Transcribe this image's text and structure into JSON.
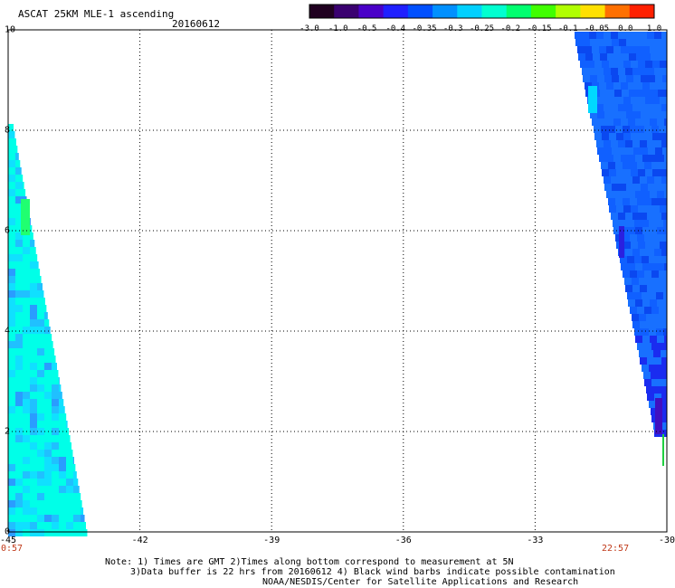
{
  "header": {
    "title": "ASCAT 25KM MLE-1 ascending",
    "date": "20160612"
  },
  "colorbar": {
    "labels": [
      "-3.0",
      "-1.0",
      "-0.5",
      "-0.4",
      "-0.35",
      "-0.3",
      "-0.25",
      "-0.2",
      "-0.15",
      "-0.1",
      "-0.05",
      "0.0",
      "1.0"
    ],
    "colors": [
      "#200020",
      "#3a0070",
      "#4a00c8",
      "#2020ff",
      "#0050ff",
      "#0090ff",
      "#00d0ff",
      "#00ffd0",
      "#00ff70",
      "#40ff00",
      "#b0ff00",
      "#ffe000",
      "#ff7000",
      "#ff2000"
    ]
  },
  "map": {
    "x_ticks": [
      "-45",
      "-42",
      "-39",
      "-36",
      "-33",
      "-30"
    ],
    "y_ticks": [
      "0",
      "2",
      "4",
      "6",
      "8",
      "10"
    ],
    "start_time": "0:57",
    "end_time": "22:57"
  },
  "notes": {
    "line1": "Note: 1) Times are GMT 2)Times along bottom correspond to measurement at 5N",
    "line2": "3)Data buffer is 22 hrs from 20160612 4) Black wind barbs indicate possible contamination",
    "line3": "NOAA/NESDIS/Center for Satellite Applications and Research"
  }
}
